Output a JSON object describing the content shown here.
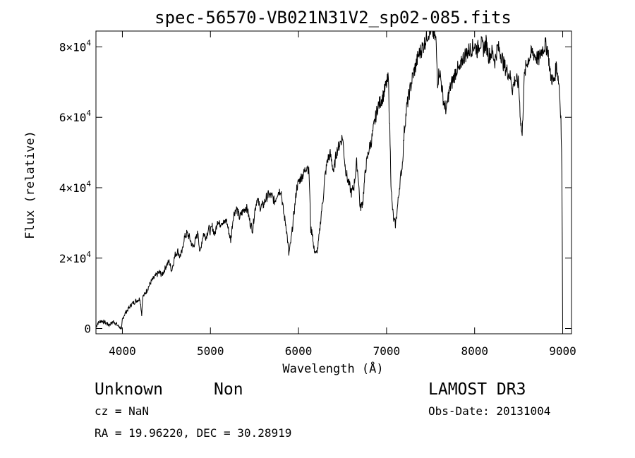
{
  "chart_data": {
    "type": "line",
    "title": "spec-56570-VB021N31V2_sp02-085.fits",
    "xlabel": "Wavelength (Å)",
    "ylabel": "Flux (relative)",
    "xlim": [
      3700,
      9100
    ],
    "ylim": [
      -1500,
      84500
    ],
    "x_ticks": [
      {
        "value": 4000,
        "label": "4000"
      },
      {
        "value": 5000,
        "label": "5000"
      },
      {
        "value": 6000,
        "label": "6000"
      },
      {
        "value": 7000,
        "label": "7000"
      },
      {
        "value": 8000,
        "label": "8000"
      },
      {
        "value": 9000,
        "label": "9000"
      }
    ],
    "y_ticks": [
      {
        "value": 0,
        "label": "0",
        "mantissa": "",
        "exponent": ""
      },
      {
        "value": 20000,
        "label": "2×10⁴",
        "mantissa": "2×10",
        "exponent": "4"
      },
      {
        "value": 40000,
        "label": "4×10⁴",
        "mantissa": "4×10",
        "exponent": "4"
      },
      {
        "value": 60000,
        "label": "6×10⁴",
        "mantissa": "6×10",
        "exponent": "4"
      },
      {
        "value": 80000,
        "label": "8×10⁴",
        "mantissa": "8×10",
        "exponent": "4"
      }
    ],
    "spectrum": {
      "x": [
        3700,
        3720,
        3760,
        3800,
        3850,
        3900,
        3950,
        3980,
        3990,
        4000,
        4020,
        4050,
        4080,
        4100,
        4120,
        4150,
        4180,
        4200,
        4220,
        4230,
        4250,
        4280,
        4300,
        4330,
        4350,
        4380,
        4400,
        4420,
        4450,
        4480,
        4500,
        4530,
        4560,
        4600,
        4630,
        4650,
        4680,
        4700,
        4730,
        4760,
        4800,
        4830,
        4860,
        4880,
        4900,
        4920,
        4950,
        4980,
        5000,
        5020,
        5050,
        5080,
        5100,
        5130,
        5160,
        5180,
        5200,
        5230,
        5260,
        5280,
        5300,
        5330,
        5360,
        5400,
        5420,
        5450,
        5480,
        5500,
        5530,
        5560,
        5600,
        5630,
        5660,
        5700,
        5730,
        5760,
        5800,
        5830,
        5860,
        5880,
        5890,
        5900,
        5920,
        5950,
        5980,
        6000,
        6030,
        6060,
        6080,
        6100,
        6120,
        6140,
        6160,
        6170,
        6180,
        6200,
        6220,
        6240,
        6260,
        6280,
        6300,
        6330,
        6360,
        6400,
        6430,
        6460,
        6500,
        6530,
        6560,
        6580,
        6600,
        6630,
        6660,
        6680,
        6700,
        6730,
        6760,
        6800,
        6830,
        6860,
        6900,
        6930,
        6960,
        7000,
        7020,
        7040,
        7050,
        7060,
        7080,
        7100,
        7120,
        7150,
        7180,
        7200,
        7230,
        7260,
        7300,
        7330,
        7360,
        7400,
        7430,
        7460,
        7500,
        7530,
        7560,
        7580,
        7600,
        7620,
        7650,
        7680,
        7700,
        7730,
        7760,
        7800,
        7830,
        7860,
        7900,
        7930,
        7960,
        8000,
        8030,
        8060,
        8100,
        8130,
        8160,
        8200,
        8230,
        8260,
        8300,
        8330,
        8360,
        8400,
        8430,
        8460,
        8500,
        8520,
        8540,
        8560,
        8580,
        8600,
        8630,
        8660,
        8700,
        8730,
        8760,
        8800,
        8830,
        8860,
        8900,
        8930,
        8960,
        8980,
        8990,
        8995,
        9000
      ],
      "y": [
        500,
        1500,
        2200,
        1800,
        1000,
        2000,
        800,
        200,
        -500,
        2500,
        3800,
        5000,
        6000,
        6800,
        7200,
        7800,
        8200,
        8500,
        4000,
        9000,
        9500,
        11000,
        12000,
        13500,
        14000,
        15000,
        15500,
        16000,
        15200,
        16800,
        18000,
        19000,
        16500,
        21000,
        22000,
        20500,
        21800,
        25500,
        27000,
        26000,
        23000,
        25000,
        27500,
        21000,
        24500,
        27000,
        26000,
        28500,
        27500,
        29000,
        26500,
        31000,
        29500,
        30500,
        29800,
        31000,
        28500,
        25000,
        32000,
        33500,
        34000,
        31500,
        33000,
        34500,
        33800,
        30000,
        28000,
        33000,
        37000,
        34500,
        35000,
        37000,
        38000,
        37500,
        36000,
        38500,
        39500,
        33000,
        29000,
        24000,
        21000,
        22500,
        26000,
        33000,
        40000,
        41500,
        43000,
        44000,
        45500,
        46500,
        44000,
        28000,
        27000,
        23000,
        22500,
        21000,
        23000,
        27500,
        33000,
        37000,
        43000,
        48000,
        49500,
        44500,
        50000,
        52000,
        54500,
        46000,
        42000,
        40500,
        38500,
        40500,
        47000,
        43000,
        34000,
        36000,
        45000,
        51000,
        53500,
        58000,
        63000,
        64500,
        66000,
        69500,
        71000,
        53000,
        42000,
        36000,
        31000,
        29500,
        33500,
        41000,
        47000,
        56000,
        63000,
        67000,
        72000,
        74500,
        77500,
        79500,
        81000,
        83500,
        85000,
        84000,
        82000,
        70000,
        73500,
        70000,
        64000,
        62000,
        66000,
        69000,
        71000,
        74000,
        73000,
        76500,
        78000,
        78800,
        79500,
        80500,
        79000,
        81500,
        79500,
        81000,
        77500,
        78500,
        76000,
        80000,
        78000,
        75000,
        73500,
        72000,
        68000,
        71000,
        69500,
        60000,
        54500,
        70000,
        74000,
        76000,
        77500,
        78500,
        77000,
        76500,
        79000,
        80500,
        79500,
        72000,
        70000,
        75000,
        69000,
        60000,
        45000,
        25000,
        0
      ]
    }
  },
  "info": {
    "object_class": "Unknown",
    "object_subclass": "Non",
    "cz": "cz = NaN",
    "coords": "RA =  19.96220, DEC =  30.28919",
    "survey": "LAMOST DR3",
    "obs_date": "Obs-Date: 20131004"
  }
}
